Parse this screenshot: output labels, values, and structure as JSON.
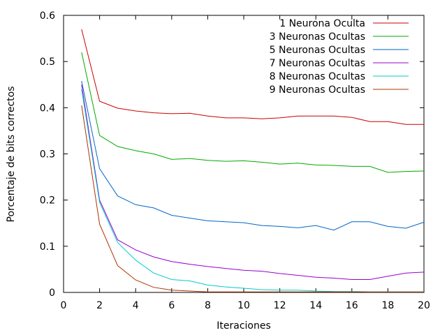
{
  "chart_data": {
    "type": "line",
    "title": "",
    "xlabel": "Iteraciones",
    "ylabel": "Porcentaje de bits correctos",
    "xlim": [
      0,
      20
    ],
    "ylim": [
      0,
      0.6
    ],
    "xticks": [
      "0",
      "2",
      "4",
      "6",
      "8",
      "10",
      "12",
      "14",
      "16",
      "18",
      "20"
    ],
    "yticks": [
      "0",
      "0.1",
      "0.2",
      "0.3",
      "0.4",
      "0.5",
      "0.6"
    ],
    "grid": false,
    "legend_position": "top-right",
    "x": [
      1,
      2,
      3,
      4,
      5,
      6,
      7,
      8,
      9,
      10,
      11,
      12,
      13,
      14,
      15,
      16,
      17,
      18,
      19,
      20
    ],
    "series": [
      {
        "name": "1 Neurona Oculta",
        "color": "#cc0000",
        "values": [
          0.57,
          0.414,
          0.399,
          0.393,
          0.389,
          0.387,
          0.388,
          0.382,
          0.378,
          0.378,
          0.376,
          0.378,
          0.382,
          0.382,
          0.382,
          0.379,
          0.37,
          0.37,
          0.364,
          0.364
        ]
      },
      {
        "name": "3 Neuronas Ocultas",
        "color": "#00aa00",
        "values": [
          0.52,
          0.34,
          0.316,
          0.307,
          0.3,
          0.288,
          0.29,
          0.286,
          0.284,
          0.285,
          0.282,
          0.278,
          0.28,
          0.276,
          0.275,
          0.273,
          0.273,
          0.26,
          0.262,
          0.263
        ]
      },
      {
        "name": "5 Neuronas Ocultas",
        "color": "#0066cc",
        "values": [
          0.458,
          0.268,
          0.209,
          0.19,
          0.183,
          0.167,
          0.161,
          0.155,
          0.153,
          0.151,
          0.145,
          0.143,
          0.14,
          0.145,
          0.135,
          0.153,
          0.153,
          0.143,
          0.139,
          0.152
        ]
      },
      {
        "name": "7 Neuronas Ocultas",
        "color": "#9900cc",
        "values": [
          0.45,
          0.2,
          0.114,
          0.092,
          0.077,
          0.067,
          0.061,
          0.056,
          0.052,
          0.048,
          0.046,
          0.041,
          0.037,
          0.033,
          0.031,
          0.028,
          0.028,
          0.035,
          0.042,
          0.044
        ]
      },
      {
        "name": "8 Neuronas Ocultas",
        "color": "#00cccc",
        "values": [
          0.44,
          0.195,
          0.108,
          0.07,
          0.042,
          0.028,
          0.025,
          0.016,
          0.012,
          0.009,
          0.006,
          0.005,
          0.005,
          0.003,
          0.002,
          0.002,
          0.001,
          0.001,
          0.001,
          0.001
        ]
      },
      {
        "name": "9 Neuronas Ocultas",
        "color": "#aa3300",
        "values": [
          0.405,
          0.148,
          0.058,
          0.027,
          0.011,
          0.005,
          0.003,
          0.001,
          0.001,
          0.001,
          0.001,
          0.001,
          0.001,
          0.001,
          0.001,
          0.001,
          0.001,
          0.001,
          0.001,
          0.001
        ]
      }
    ]
  }
}
